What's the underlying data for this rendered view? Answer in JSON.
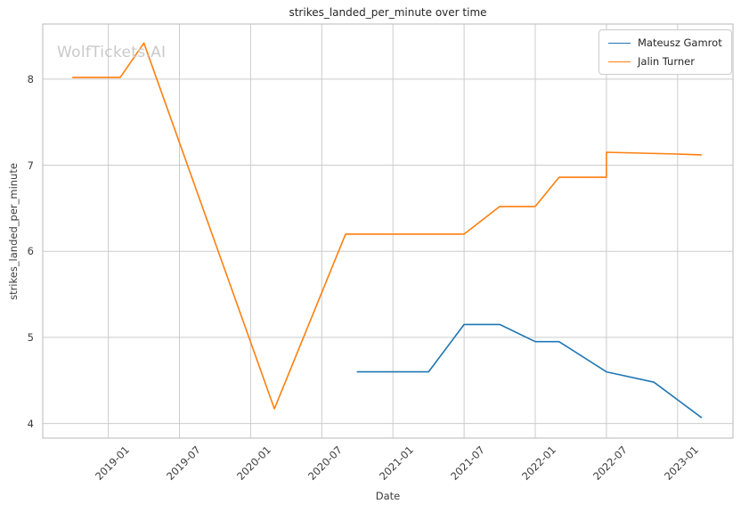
{
  "figure": {
    "watermark": "WolfTickets.AI"
  },
  "chart_data": {
    "type": "line",
    "title": "strikes_landed_per_minute over time",
    "xlabel": "Date",
    "ylabel": "strikes_landed_per_minute",
    "x_tick_labels": [
      "2019-01",
      "2019-07",
      "2020-01",
      "2020-07",
      "2021-01",
      "2021-07",
      "2022-01",
      "2022-07",
      "2023-01"
    ],
    "y_ticks": [
      4,
      5,
      6,
      7,
      8
    ],
    "x_range_months_since_2018_01": [
      6.47,
      64.67
    ],
    "ylim": [
      3.83,
      8.64
    ],
    "grid": true,
    "legend_position": "upper right",
    "colors": {
      "grid": "#cccccc",
      "border": "#c4c4c4",
      "watermark": "#c9c9c9",
      "text": "#3d3d3d"
    },
    "series": [
      {
        "name": "Mateusz Gamrot",
        "color": "#1f77b4",
        "points": [
          [
            "2020-10",
            4.6
          ],
          [
            "2021-04",
            4.6
          ],
          [
            "2021-07",
            5.15
          ],
          [
            "2021-10",
            5.15
          ],
          [
            "2022-01",
            4.95
          ],
          [
            "2022-03",
            4.95
          ],
          [
            "2022-07",
            4.6
          ],
          [
            "2022-11",
            4.48
          ],
          [
            "2023-03",
            4.07
          ]
        ]
      },
      {
        "name": "Jalin Turner",
        "color": "#ff7f0e",
        "points": [
          [
            "2018-10",
            8.02
          ],
          [
            "2019-02",
            8.02
          ],
          [
            "2019-04",
            8.42
          ],
          [
            "2020-03",
            4.17
          ],
          [
            "2020-09",
            6.2
          ],
          [
            "2021-07",
            6.2
          ],
          [
            "2021-10",
            6.52
          ],
          [
            "2022-01",
            6.52
          ],
          [
            "2022-03",
            6.86
          ],
          [
            "2022-07",
            6.86
          ],
          [
            "2022-07",
            7.15
          ],
          [
            "2023-01",
            7.13
          ],
          [
            "2023-03",
            7.12
          ]
        ]
      }
    ]
  }
}
